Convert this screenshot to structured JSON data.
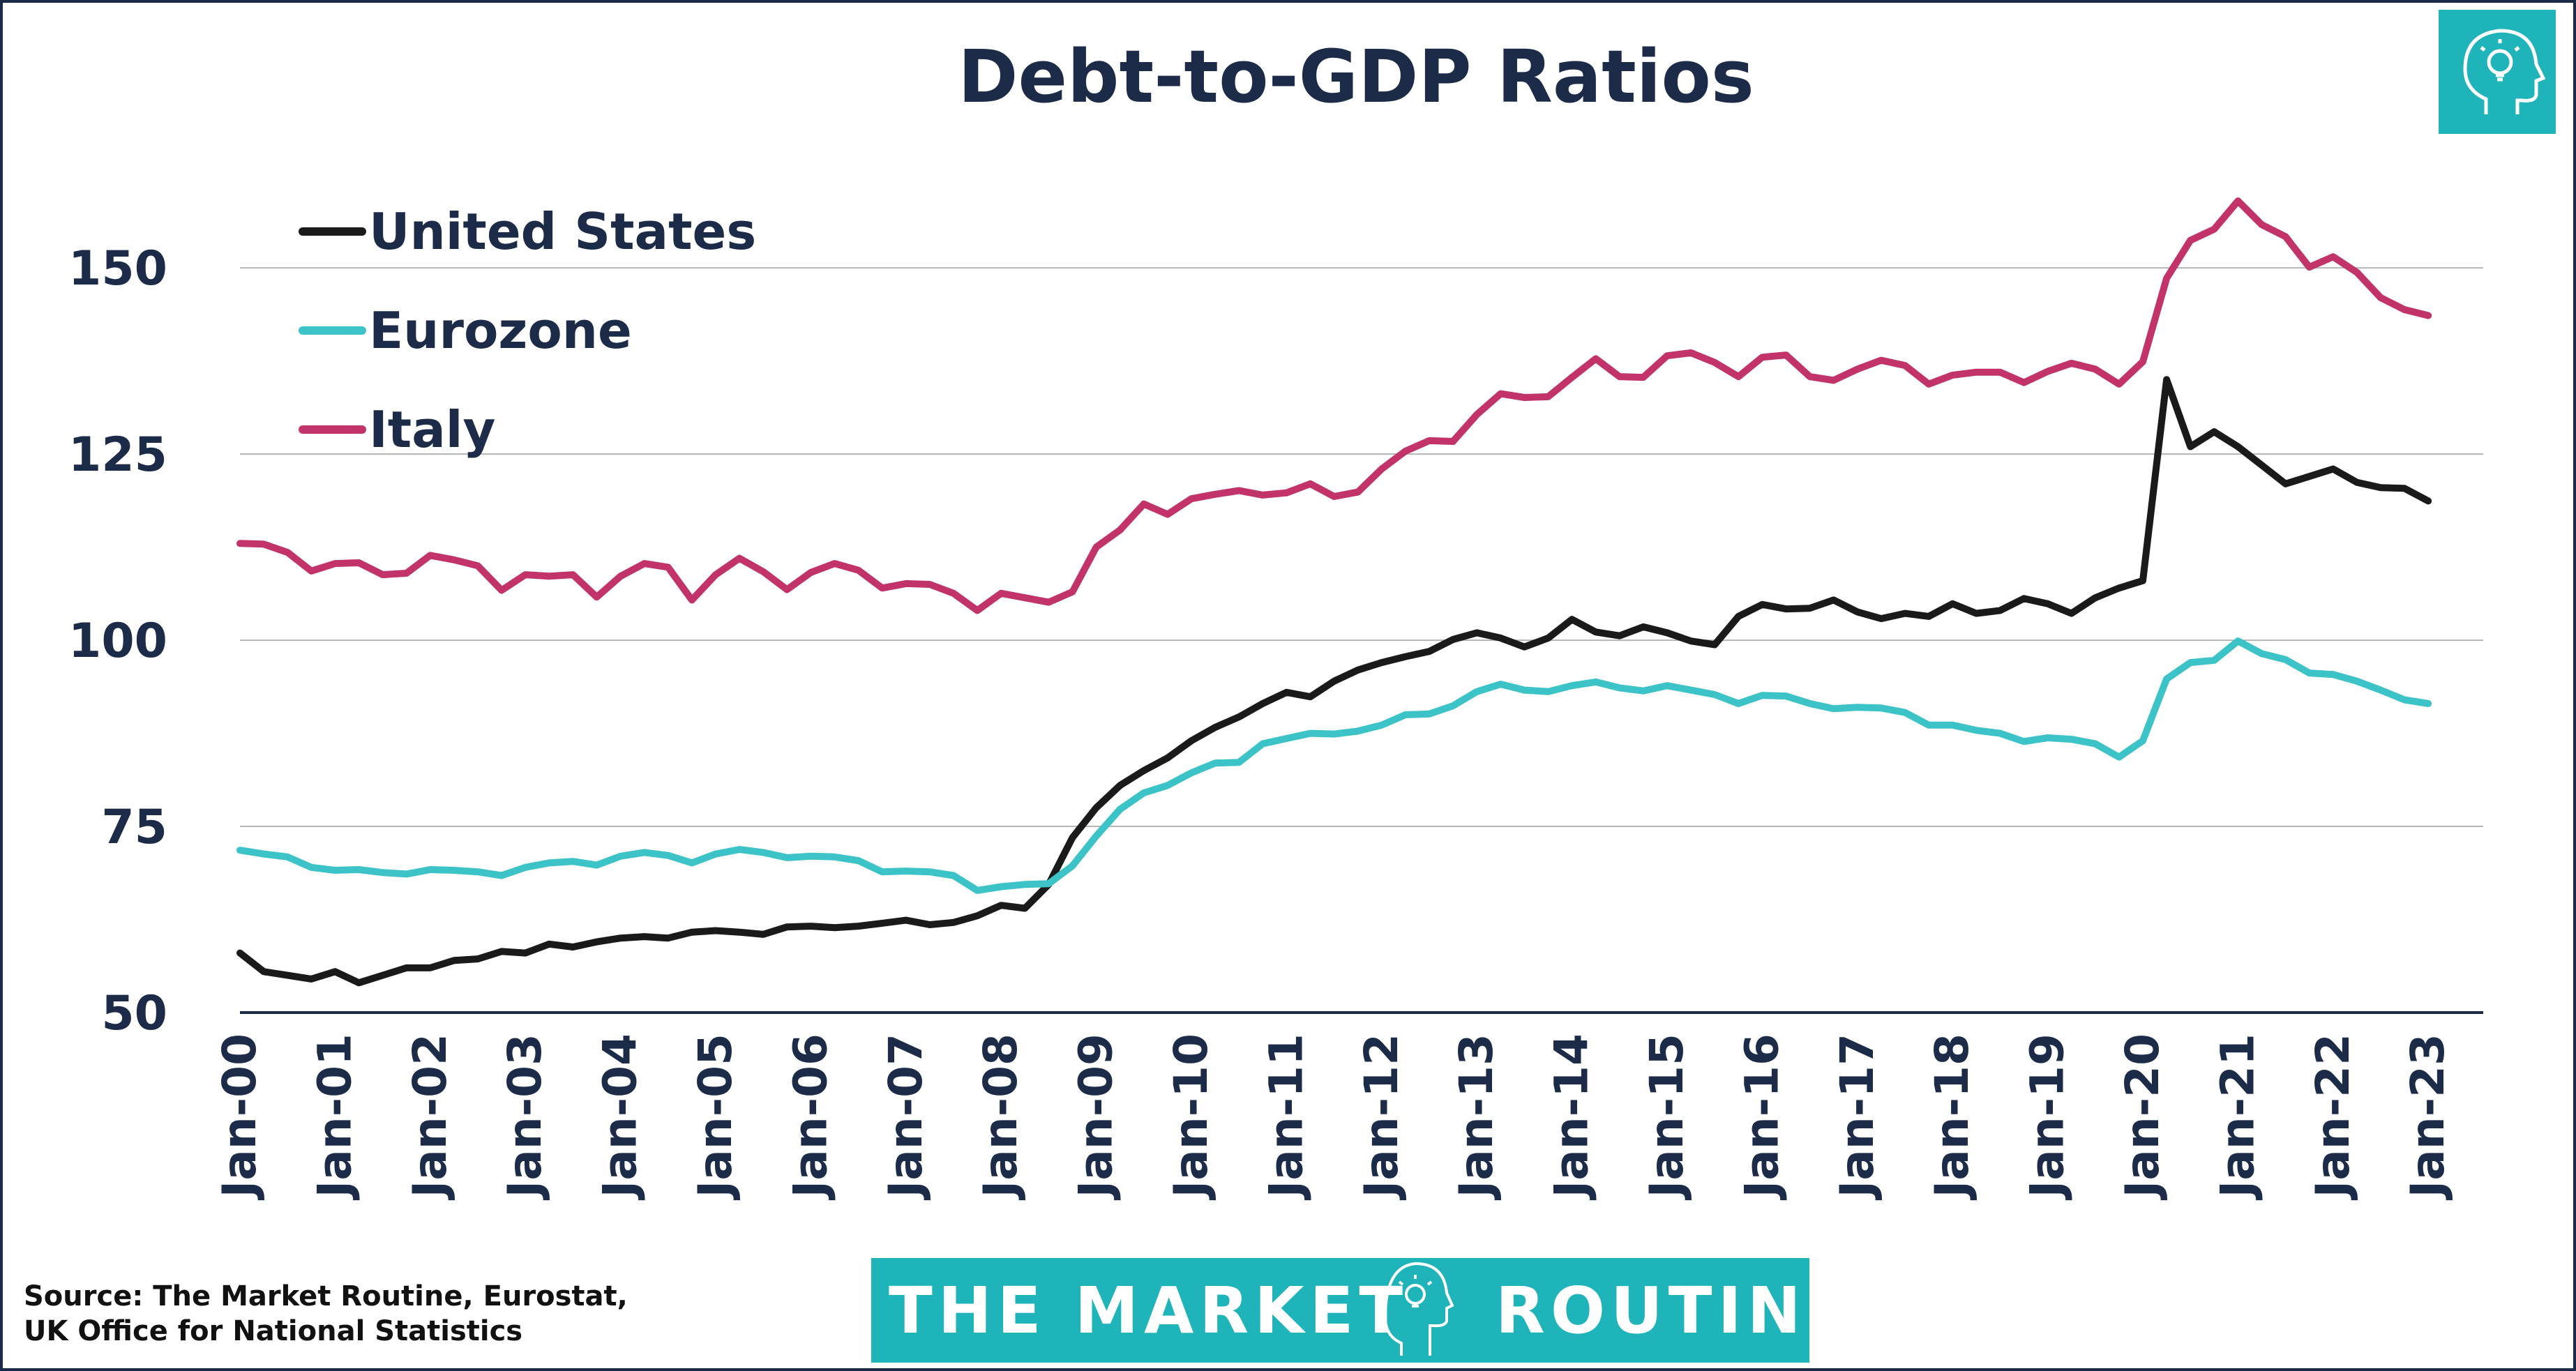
{
  "colors": {
    "united_states": "#1a1a1a",
    "eurozone": "#3cc3c7",
    "italy": "#c2336a",
    "text": "#1b2b48",
    "brand_teal": "#1fb3ba"
  },
  "icons": {
    "corner_logo": "lightbulb-head-icon",
    "footer_logo": "lightbulb-head-icon"
  },
  "brand": {
    "left": "THE MARKET",
    "right": "ROUTINE"
  },
  "source": {
    "line1": "Source: The Market Routine, Eurostat,",
    "line2": "UK Office for National Statistics"
  },
  "chart_data": {
    "type": "line",
    "title": "Debt-to-GDP Ratios",
    "xlabel": "",
    "ylabel": "",
    "ylim": [
      50,
      165
    ],
    "yticks": [
      50,
      75,
      100,
      125,
      150
    ],
    "grid": true,
    "legend_position": "top-left",
    "x_labels": [
      "Jan-00",
      "Jan-01",
      "Jan-02",
      "Jan-03",
      "Jan-04",
      "Jan-05",
      "Jan-06",
      "Jan-07",
      "Jan-08",
      "Jan-09",
      "Jan-10",
      "Jan-11",
      "Jan-12",
      "Jan-13",
      "Jan-14",
      "Jan-15",
      "Jan-16",
      "Jan-17",
      "Jan-18",
      "Jan-19",
      "Jan-20",
      "Jan-21",
      "Jan-22",
      "Jan-23"
    ],
    "x_start": "2000-01",
    "x_step": "quarter",
    "series": [
      {
        "name": "United States",
        "color_key": "united_states",
        "values": [
          58,
          55.5,
          55,
          54.5,
          55.5,
          54,
          55,
          56,
          56,
          57,
          57.2,
          58.2,
          58,
          59.2,
          58.8,
          59.5,
          60,
          60.2,
          60,
          60.8,
          61,
          60.8,
          60.5,
          61.5,
          61.6,
          61.4,
          61.6,
          62,
          62.4,
          61.8,
          62.1,
          63,
          64.4,
          64,
          67.2,
          73.5,
          77.5,
          80.5,
          82.5,
          84.2,
          86.5,
          88.3,
          89.7,
          91.5,
          93,
          92.4,
          94.5,
          96,
          97,
          97.8,
          98.5,
          100.1,
          101,
          100.3,
          99.1,
          100.3,
          102.8,
          101.1,
          100.6,
          101.8,
          101,
          99.9,
          99.4,
          103.2,
          104.8,
          104.2,
          104.3,
          105.4,
          103.8,
          102.9,
          103.6,
          103.2,
          104.9,
          103.6,
          104,
          105.6,
          104.9,
          103.6,
          105.7,
          107,
          108,
          135,
          126,
          128,
          126,
          123.5,
          121,
          122,
          123,
          121.2,
          120.5,
          120.4,
          118.7
        ]
      },
      {
        "name": "Eurozone",
        "color_key": "eurozone",
        "values": [
          71.8,
          71.3,
          70.9,
          69.5,
          69.1,
          69.2,
          68.8,
          68.6,
          69.2,
          69.1,
          68.9,
          68.4,
          69.5,
          70.1,
          70.3,
          69.8,
          71,
          71.5,
          71.1,
          70.1,
          71.3,
          71.9,
          71.5,
          70.8,
          71,
          70.9,
          70.4,
          68.9,
          69,
          68.9,
          68.4,
          66.4,
          66.9,
          67.2,
          67.3,
          69.7,
          73.7,
          77.3,
          79.5,
          80.5,
          82.2,
          83.5,
          83.6,
          86.1,
          86.8,
          87.5,
          87.4,
          87.8,
          88.6,
          90,
          90.1,
          91.2,
          93.1,
          94.1,
          93.3,
          93.1,
          93.9,
          94.4,
          93.6,
          93.2,
          93.9,
          93.3,
          92.7,
          91.5,
          92.6,
          92.5,
          91.5,
          90.8,
          91,
          90.9,
          90.3,
          88.6,
          88.6,
          87.9,
          87.5,
          86.4,
          86.9,
          86.7,
          86.1,
          84.3,
          86.5,
          94.8,
          97,
          97.3,
          99.9,
          98.2,
          97.4,
          95.6,
          95.4,
          94.5,
          93.3,
          92,
          91.5
        ]
      },
      {
        "name": "Italy",
        "color_key": "italy",
        "values": [
          113,
          112.9,
          111.8,
          109.3,
          110.3,
          110.4,
          108.8,
          109,
          111.4,
          110.8,
          110,
          106.7,
          108.8,
          108.6,
          108.8,
          105.8,
          108.6,
          110.3,
          109.8,
          105.4,
          108.8,
          111,
          109.2,
          106.8,
          109.1,
          110.3,
          109.4,
          107,
          107.6,
          107.5,
          106.3,
          104,
          106.3,
          105.7,
          105.1,
          106.5,
          112.5,
          114.8,
          118.3,
          116.9,
          119,
          119.6,
          120.1,
          119.5,
          119.8,
          121,
          119.3,
          119.9,
          123,
          125.4,
          126.8,
          126.7,
          130.3,
          133.1,
          132.6,
          132.7,
          135.3,
          137.8,
          135.4,
          135.3,
          138.2,
          138.6,
          137.3,
          135.4,
          138,
          138.3,
          135.4,
          134.9,
          136.4,
          137.6,
          136.9,
          134.4,
          135.6,
          136,
          136,
          134.6,
          136.1,
          137.2,
          136.4,
          134.4,
          137.4,
          148.6,
          153.7,
          155.2,
          159,
          155.8,
          154.2,
          150.1,
          151.5,
          149.4,
          146,
          144.4,
          143.6
        ]
      }
    ]
  }
}
